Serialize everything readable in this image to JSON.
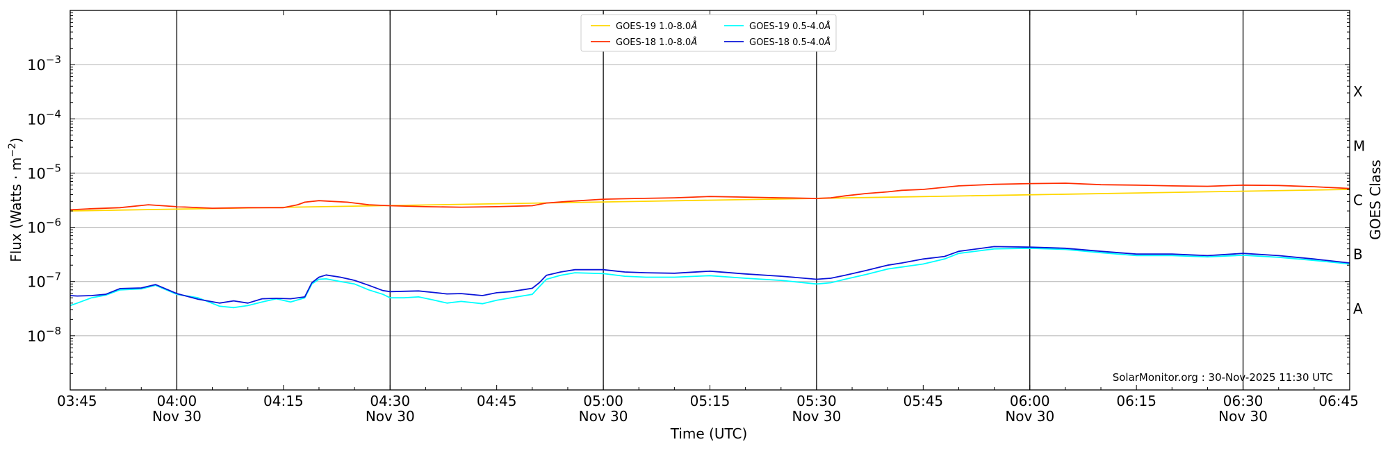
{
  "chart_data": {
    "type": "line",
    "xlabel": "Time (UTC)",
    "ylabel_main": "Flux (Watts · m",
    "ylabel_exp": "−2",
    "ylabel_close": ")",
    "right_label": "GOES Class",
    "watermark": "SolarMonitor.org : 30-Nov-2025 11:30 UTC",
    "y_scale": "log",
    "ylim": [
      1e-09,
      0.01
    ],
    "xlim_minutes": [
      225,
      405
    ],
    "grid": "horizontal",
    "legend_position": "top-center",
    "y_ticks": [
      {
        "value": 1e-08,
        "base": "10",
        "exp": "−8"
      },
      {
        "value": 1e-07,
        "base": "10",
        "exp": "−7"
      },
      {
        "value": 1e-06,
        "base": "10",
        "exp": "−6"
      },
      {
        "value": 1e-05,
        "base": "10",
        "exp": "−5"
      },
      {
        "value": 0.0001,
        "base": "10",
        "exp": "−4"
      },
      {
        "value": 0.001,
        "base": "10",
        "exp": "−3"
      }
    ],
    "x_ticks": [
      {
        "minute": 225,
        "label": "03:45",
        "date": ""
      },
      {
        "minute": 240,
        "label": "04:00",
        "date": "Nov 30"
      },
      {
        "minute": 255,
        "label": "04:15",
        "date": ""
      },
      {
        "minute": 270,
        "label": "04:30",
        "date": "Nov 30"
      },
      {
        "minute": 285,
        "label": "04:45",
        "date": ""
      },
      {
        "minute": 300,
        "label": "05:00",
        "date": "Nov 30"
      },
      {
        "minute": 315,
        "label": "05:15",
        "date": ""
      },
      {
        "minute": 330,
        "label": "05:30",
        "date": "Nov 30"
      },
      {
        "minute": 345,
        "label": "05:45",
        "date": ""
      },
      {
        "minute": 360,
        "label": "06:00",
        "date": "Nov 30"
      },
      {
        "minute": 375,
        "label": "06:15",
        "date": ""
      },
      {
        "minute": 390,
        "label": "06:30",
        "date": "Nov 30"
      },
      {
        "minute": 405,
        "label": "06:45",
        "date": ""
      }
    ],
    "vlines_minutes": [
      240,
      270,
      300,
      330,
      360,
      390
    ],
    "goes_classes": [
      {
        "label": "A",
        "value": 3.16e-08
      },
      {
        "label": "B",
        "value": 3.16e-07
      },
      {
        "label": "C",
        "value": 3.16e-06
      },
      {
        "label": "M",
        "value": 3.16e-05
      },
      {
        "label": "X",
        "value": 0.000316
      }
    ],
    "series": [
      {
        "name": "GOES-19 1.0-8.0",
        "color": "#ffd700",
        "x": [
          225,
          410
        ],
        "y": [
          2e-06,
          5e-06
        ]
      },
      {
        "name": "GOES-18 1.0-8.0",
        "color": "#ff2d00",
        "x": [
          225,
          228,
          232,
          236,
          240,
          245,
          250,
          255,
          257,
          258,
          260,
          262,
          264,
          267,
          270,
          275,
          280,
          285,
          290,
          292,
          295,
          300,
          305,
          310,
          315,
          320,
          325,
          330,
          332,
          334,
          337,
          340,
          342,
          345,
          350,
          355,
          360,
          365,
          370,
          375,
          380,
          385,
          390,
          395,
          400,
          405
        ],
        "y": [
          2.1e-06,
          2.2e-06,
          2.3e-06,
          2.6e-06,
          2.4e-06,
          2.25e-06,
          2.3e-06,
          2.3e-06,
          2.6e-06,
          2.9e-06,
          3.1e-06,
          3e-06,
          2.9e-06,
          2.6e-06,
          2.5e-06,
          2.4e-06,
          2.35e-06,
          2.4e-06,
          2.5e-06,
          2.8e-06,
          3e-06,
          3.3e-06,
          3.4e-06,
          3.5e-06,
          3.7e-06,
          3.6e-06,
          3.5e-06,
          3.4e-06,
          3.5e-06,
          3.8e-06,
          4.2e-06,
          4.5e-06,
          4.8e-06,
          5e-06,
          5.8e-06,
          6.2e-06,
          6.4e-06,
          6.5e-06,
          6.1e-06,
          6e-06,
          5.8e-06,
          5.7e-06,
          6e-06,
          5.9e-06,
          5.6e-06,
          5.2e-06
        ]
      },
      {
        "name": "GOES-19 0.5-4.0",
        "color": "#00ffff",
        "x": [
          225,
          226,
          228,
          230,
          232,
          235,
          237,
          240,
          243,
          246,
          248,
          250,
          252,
          254,
          256,
          258,
          259,
          260,
          261,
          263,
          265,
          267,
          269,
          270,
          272,
          274,
          276,
          278,
          280,
          283,
          285,
          287,
          290,
          291,
          292,
          294,
          296,
          300,
          303,
          306,
          310,
          315,
          320,
          325,
          330,
          332,
          334,
          337,
          340,
          342,
          345,
          348,
          350,
          355,
          360,
          365,
          370,
          375,
          380,
          385,
          390,
          395,
          400,
          405
        ],
        "y": [
          3.6e-08,
          4e-08,
          5e-08,
          5.6e-08,
          7e-08,
          7.3e-08,
          8.5e-08,
          5.8e-08,
          5e-08,
          3.5e-08,
          3.3e-08,
          3.6e-08,
          4.2e-08,
          4.8e-08,
          4.2e-08,
          5e-08,
          9e-08,
          1.1e-07,
          1.12e-07,
          1e-07,
          9e-08,
          7e-08,
          5.8e-08,
          5e-08,
          5e-08,
          5.2e-08,
          4.6e-08,
          4e-08,
          4.3e-08,
          3.9e-08,
          4.5e-08,
          5e-08,
          5.8e-08,
          8e-08,
          1.1e-07,
          1.3e-07,
          1.45e-07,
          1.4e-07,
          1.25e-07,
          1.2e-07,
          1.2e-07,
          1.28e-07,
          1.15e-07,
          1.05e-07,
          9e-08,
          9.5e-08,
          1.1e-07,
          1.35e-07,
          1.7e-07,
          1.85e-07,
          2.1e-07,
          2.6e-07,
          3.3e-07,
          4e-07,
          4.1e-07,
          3.9e-07,
          3.4e-07,
          3e-07,
          3e-07,
          2.85e-07,
          3.05e-07,
          2.8e-07,
          2.45e-07,
          2.1e-07
        ]
      },
      {
        "name": "GOES-18 0.5-4.0",
        "color": "#0a14d8",
        "x": [
          225,
          226,
          228,
          230,
          232,
          235,
          237,
          240,
          243,
          246,
          248,
          250,
          252,
          254,
          256,
          258,
          259,
          260,
          261,
          263,
          265,
          267,
          269,
          270,
          272,
          274,
          276,
          278,
          280,
          283,
          285,
          287,
          290,
          291,
          292,
          294,
          296,
          300,
          303,
          306,
          310,
          315,
          320,
          325,
          330,
          332,
          334,
          337,
          340,
          342,
          345,
          348,
          350,
          355,
          360,
          365,
          370,
          375,
          380,
          385,
          390,
          395,
          400,
          405
        ],
        "y": [
          5.5e-08,
          5.4e-08,
          5.5e-08,
          5.8e-08,
          7.4e-08,
          7.6e-08,
          8.8e-08,
          6e-08,
          4.7e-08,
          4e-08,
          4.4e-08,
          4e-08,
          4.8e-08,
          4.9e-08,
          4.8e-08,
          5.2e-08,
          9.5e-08,
          1.2e-07,
          1.32e-07,
          1.2e-07,
          1.05e-07,
          8.5e-08,
          6.8e-08,
          6.5e-08,
          6.6e-08,
          6.7e-08,
          6.3e-08,
          5.9e-08,
          6e-08,
          5.5e-08,
          6.2e-08,
          6.5e-08,
          7.5e-08,
          9.5e-08,
          1.3e-07,
          1.5e-07,
          1.65e-07,
          1.65e-07,
          1.5e-07,
          1.45e-07,
          1.42e-07,
          1.55e-07,
          1.38e-07,
          1.25e-07,
          1.1e-07,
          1.15e-07,
          1.3e-07,
          1.6e-07,
          2e-07,
          2.2e-07,
          2.6e-07,
          2.9e-07,
          3.6e-07,
          4.4e-07,
          4.3e-07,
          4.1e-07,
          3.6e-07,
          3.2e-07,
          3.2e-07,
          3e-07,
          3.3e-07,
          3e-07,
          2.6e-07,
          2.2e-07
        ]
      }
    ]
  }
}
